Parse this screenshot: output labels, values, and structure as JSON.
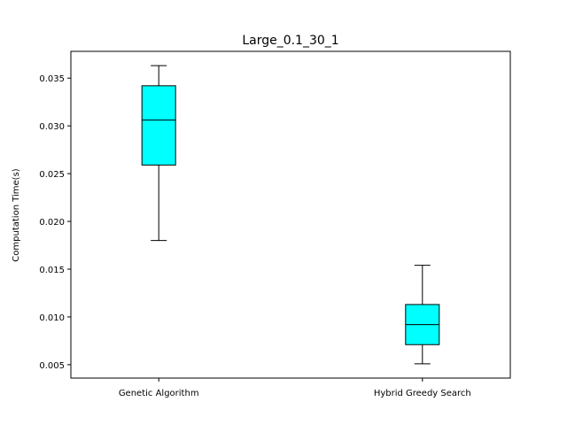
{
  "chart_data": {
    "type": "box",
    "title": "Large_0.1_30_1",
    "xlabel": "",
    "ylabel": "Computation Time(s)",
    "ylim": [
      0.0036,
      0.0378
    ],
    "categories": [
      "Genetic Algorithm",
      "Hybrid Greedy Search"
    ],
    "boxes": [
      {
        "whisker_low": 0.018,
        "q1": 0.0259,
        "median": 0.0306,
        "q3": 0.0342,
        "whisker_high": 0.0363
      },
      {
        "whisker_low": 0.0051,
        "q1": 0.0071,
        "median": 0.0092,
        "q3": 0.0113,
        "whisker_high": 0.0154
      }
    ],
    "yticks": [
      0.005,
      0.01,
      0.015,
      0.02,
      0.025,
      0.03,
      0.035
    ],
    "ytick_labels": [
      "0.005",
      "0.010",
      "0.015",
      "0.020",
      "0.025",
      "0.030",
      "0.035"
    ],
    "box_color": "#00ffff",
    "line_color": "#000000",
    "grid": false
  }
}
